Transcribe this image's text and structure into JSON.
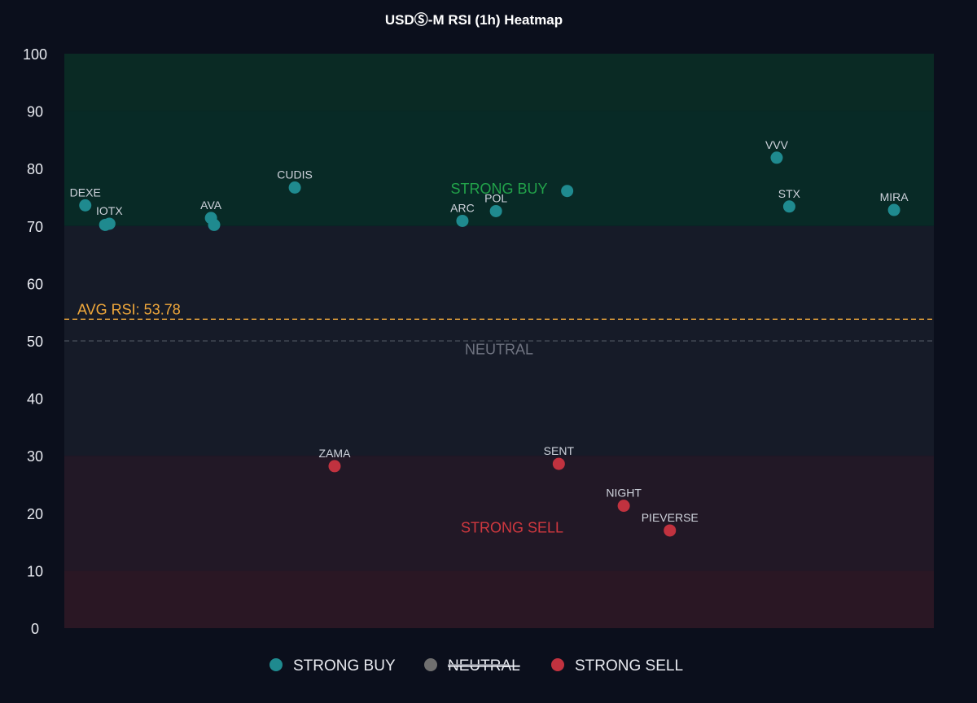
{
  "chart_data": {
    "type": "scatter",
    "title": "USDⓈ-M RSI (1h) Heatmap",
    "ylim": [
      0,
      100
    ],
    "yticks": [
      0,
      10,
      20,
      30,
      40,
      50,
      60,
      70,
      80,
      90,
      100
    ],
    "x_axis_visible": false,
    "grid": false,
    "zones": [
      {
        "from": 90,
        "to": 100,
        "color": "#0a2a24"
      },
      {
        "from": 70,
        "to": 90,
        "color": "#082a26"
      },
      {
        "from": 30,
        "to": 70,
        "color": "#161b28"
      },
      {
        "from": 10,
        "to": 30,
        "color": "#221826"
      },
      {
        "from": 0,
        "to": 10,
        "color": "#2a1724"
      }
    ],
    "zone_labels": [
      {
        "text": "STRONG BUY",
        "y": 76.5,
        "color": "#22a34a"
      },
      {
        "text": "NEUTRAL",
        "y": 48.5,
        "color": "#6f7380"
      },
      {
        "text": "STRONG SELL",
        "y": 17.5,
        "color": "#d0383f"
      }
    ],
    "reference_lines": [
      {
        "value": 53.78,
        "label": "AVG RSI: 53.78",
        "color": "#f2a93b",
        "style": "dashed"
      },
      {
        "value": 50,
        "label": "",
        "color": "#4a505c",
        "style": "dashed"
      }
    ],
    "series": [
      {
        "name": "STRONG BUY",
        "color": "#1f8a8f",
        "points": [
          {
            "x": 1.0,
            "y": 73.6,
            "label": "DEXE"
          },
          {
            "x": 1.95,
            "y": 70.2,
            "label": ""
          },
          {
            "x": 2.15,
            "y": 70.4,
            "label": "IOTX"
          },
          {
            "x": 7.0,
            "y": 71.4,
            "label": "AVA"
          },
          {
            "x": 7.15,
            "y": 70.2,
            "label": ""
          },
          {
            "x": 11.0,
            "y": 76.7,
            "label": "CUDIS"
          },
          {
            "x": 19.0,
            "y": 70.9,
            "label": "ARC"
          },
          {
            "x": 20.6,
            "y": 72.6,
            "label": "POL"
          },
          {
            "x": 24.0,
            "y": 76.1,
            "label": ""
          },
          {
            "x": 34.0,
            "y": 81.9,
            "label": "VVV"
          },
          {
            "x": 34.6,
            "y": 73.4,
            "label": "STX"
          },
          {
            "x": 39.6,
            "y": 72.8,
            "label": "MIRA"
          }
        ]
      },
      {
        "name": "NEUTRAL",
        "color": "#6f6f6f",
        "hidden": true,
        "points": []
      },
      {
        "name": "STRONG SELL",
        "color": "#c1323f",
        "points": [
          {
            "x": 12.9,
            "y": 28.2,
            "label": "ZAMA"
          },
          {
            "x": 23.6,
            "y": 28.6,
            "label": "SENT"
          },
          {
            "x": 26.7,
            "y": 21.3,
            "label": "NIGHT"
          },
          {
            "x": 28.9,
            "y": 17.0,
            "label": "PIEVERSE"
          }
        ]
      }
    ],
    "legend": {
      "position": "bottom-center",
      "items": [
        {
          "label": "STRONG BUY",
          "color": "#1f8a8f",
          "hidden": false
        },
        {
          "label": "NEUTRAL",
          "color": "#6f6f6f",
          "hidden": true
        },
        {
          "label": "STRONG SELL",
          "color": "#c1323f",
          "hidden": false
        }
      ]
    }
  }
}
